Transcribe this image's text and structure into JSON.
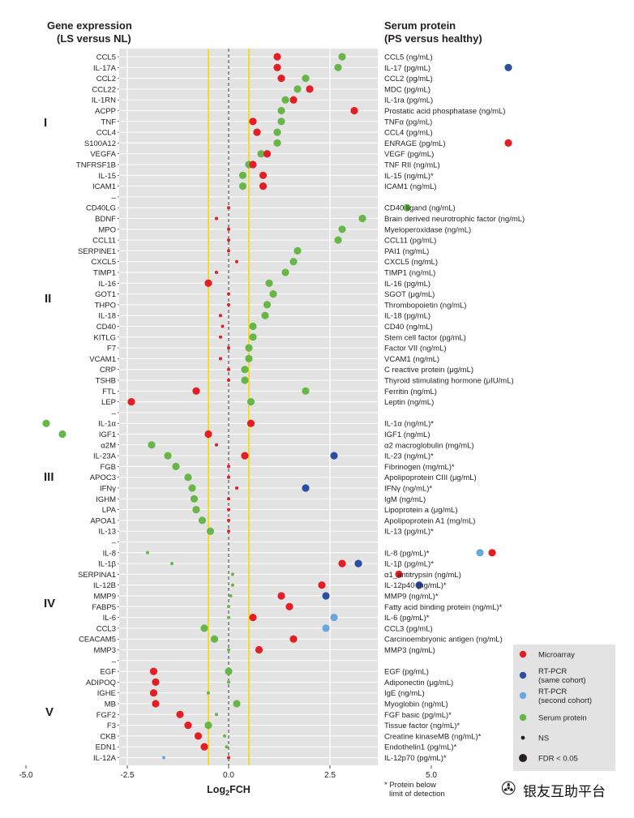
{
  "headers": {
    "left_title": "Gene expression",
    "left_sub": "(LS versus NL)",
    "right_title": "Serum protein",
    "right_sub": "(PS versus healthy)"
  },
  "sections": [
    "I",
    "II",
    "III",
    "IV",
    "V"
  ],
  "footnote": [
    "* Protein below",
    "limit of detection"
  ],
  "watermark": {
    "icon": "wechat-icon",
    "text": "银友互助平台"
  },
  "legend": {
    "items": [
      {
        "label": "Microarray",
        "color": "#e31e24",
        "kind": "dot"
      },
      {
        "label": "RT-PCR (same cohort)",
        "lines": [
          "RT-PCR",
          "(same cohort)"
        ],
        "color": "#2b4ea2",
        "kind": "dot"
      },
      {
        "label": "RT-PCR (second cohort)",
        "lines": [
          "RT-PCR",
          "(second cohort)"
        ],
        "color": "#6aa7dd",
        "kind": "dot"
      },
      {
        "label": "Serum protein",
        "color": "#67b648",
        "kind": "dot"
      },
      {
        "label": "NS",
        "color": "#231f20",
        "kind": "small"
      },
      {
        "label": "FDR < 0.05",
        "color": "#231f20",
        "kind": "large"
      }
    ]
  },
  "colors": {
    "microarray": "#e31e24",
    "rtpcr_same": "#2b4ea2",
    "rtpcr_second": "#6aa7dd",
    "serum": "#67b648",
    "panel_bg": "#e3e3e3",
    "grid": "#ffffff",
    "threshold": "#f5d800",
    "zero_line": "#555555"
  },
  "chart_data": {
    "type": "scatter",
    "xlabel": "Log2FCH",
    "xlim": [
      -5,
      7.2
    ],
    "x_ticks": [
      "-5.0",
      "-2.5",
      "0.0",
      "2.5",
      "5.0"
    ],
    "x_tick_values": [
      -5,
      -2.5,
      0,
      2.5,
      5
    ],
    "threshold_lines": [
      -0.5,
      0.5
    ],
    "series_names": {
      "m": "Microarray",
      "r": "RT-PCR (same cohort)",
      "s": "RT-PCR (second cohort)",
      "p": "Serum protein"
    },
    "rows": [
      {
        "gene": "CCL5",
        "protein": "CCL5 (ng/mL)",
        "points": [
          [
            "m",
            1.2,
            1
          ],
          [
            "p",
            2.8,
            1
          ]
        ]
      },
      {
        "gene": "IL-17A",
        "protein": "IL-17 (pg/mL)",
        "points": [
          [
            "m",
            1.2,
            1
          ],
          [
            "p",
            2.7,
            1
          ],
          [
            "r",
            6.9,
            1
          ]
        ]
      },
      {
        "gene": "CCL2",
        "protein": "CCL2 (pg/mL)",
        "points": [
          [
            "m",
            1.3,
            1
          ],
          [
            "p",
            1.9,
            1
          ]
        ]
      },
      {
        "gene": "CCL22",
        "protein": "MDC (pg/mL)",
        "points": [
          [
            "p",
            1.7,
            1
          ],
          [
            "m",
            2.0,
            1
          ]
        ]
      },
      {
        "gene": "IL-1RN",
        "protein": "IL-1ra (pg/mL)",
        "points": [
          [
            "p",
            1.4,
            1
          ],
          [
            "m",
            1.6,
            1
          ]
        ]
      },
      {
        "gene": "ACPP",
        "protein": "Prostatic acid phosphatase (ng/mL)",
        "points": [
          [
            "p",
            1.3,
            1
          ],
          [
            "m",
            3.1,
            1
          ]
        ]
      },
      {
        "gene": "TNF",
        "protein": "TNFα (pg/mL)",
        "points": [
          [
            "m",
            0.6,
            1
          ],
          [
            "p",
            1.3,
            1
          ]
        ]
      },
      {
        "gene": "CCL4",
        "protein": "CCL4 (pg/mL)",
        "points": [
          [
            "m",
            0.7,
            1
          ],
          [
            "p",
            1.2,
            1
          ]
        ]
      },
      {
        "gene": "S100A12",
        "protein": "ENRAGE (pg/mL)",
        "points": [
          [
            "p",
            1.2,
            1
          ],
          [
            "m",
            6.9,
            1
          ]
        ]
      },
      {
        "gene": "VEGFA",
        "protein": "VEGF (pg/mL)",
        "points": [
          [
            "p",
            0.8,
            1
          ],
          [
            "m",
            0.95,
            1
          ]
        ]
      },
      {
        "gene": "TNFRSF1B",
        "protein": "TNF RII (ng/mL)",
        "points": [
          [
            "p",
            0.5,
            1
          ],
          [
            "m",
            0.6,
            1
          ]
        ]
      },
      {
        "gene": "IL-15",
        "protein": "IL-15 (ng/mL)*",
        "points": [
          [
            "p",
            0.35,
            1
          ],
          [
            "m",
            0.85,
            1
          ]
        ]
      },
      {
        "gene": "ICAM1",
        "protein": "ICAM1 (ng/mL)",
        "points": [
          [
            "p",
            0.35,
            1
          ],
          [
            "m",
            0.85,
            1
          ]
        ]
      },
      {
        "gene": "",
        "protein": "",
        "points": []
      },
      {
        "gene": "CD40LG",
        "protein": "CD40 ligand (ng/mL)",
        "points": [
          [
            "m",
            0.0,
            0
          ],
          [
            "p",
            4.4,
            1
          ]
        ]
      },
      {
        "gene": "BDNF",
        "protein": "Brain derived neurotrophic factor (ng/mL)",
        "points": [
          [
            "m",
            -0.3,
            0
          ],
          [
            "p",
            3.3,
            1
          ]
        ]
      },
      {
        "gene": "MPO",
        "protein": "Myeloperoxidase (ng/mL)",
        "points": [
          [
            "m",
            0.0,
            0
          ],
          [
            "p",
            2.8,
            1
          ]
        ]
      },
      {
        "gene": "CCL11",
        "protein": "CCL11 (pg/mL)",
        "points": [
          [
            "m",
            0.0,
            0
          ],
          [
            "p",
            2.7,
            1
          ]
        ]
      },
      {
        "gene": "SERPINE1",
        "protein": "PAI1 (ng/mL)",
        "points": [
          [
            "m",
            0.0,
            0
          ],
          [
            "p",
            1.7,
            1
          ]
        ]
      },
      {
        "gene": "CXCL5",
        "protein": "CXCL5 (ng/mL)",
        "points": [
          [
            "m",
            0.2,
            0
          ],
          [
            "p",
            1.6,
            1
          ]
        ]
      },
      {
        "gene": "TIMP1",
        "protein": "TIMP1 (ng/mL)",
        "points": [
          [
            "m",
            -0.3,
            0
          ],
          [
            "p",
            1.4,
            1
          ]
        ]
      },
      {
        "gene": "IL-16",
        "protein": "IL-16 (pg/mL)",
        "points": [
          [
            "m",
            -0.5,
            1
          ],
          [
            "p",
            1.0,
            1
          ]
        ]
      },
      {
        "gene": "GOT1",
        "protein": "SGOT (μg/mL)",
        "points": [
          [
            "m",
            0.0,
            0
          ],
          [
            "p",
            1.1,
            1
          ]
        ]
      },
      {
        "gene": "THPO",
        "protein": "Thrombopoietin (ng/mL)",
        "points": [
          [
            "m",
            0.0,
            0
          ],
          [
            "p",
            0.95,
            1
          ]
        ]
      },
      {
        "gene": "IL-18",
        "protein": "IL-18 (pg/mL)",
        "points": [
          [
            "m",
            -0.2,
            0
          ],
          [
            "p",
            0.9,
            1
          ]
        ]
      },
      {
        "gene": "CD40",
        "protein": "CD40 (ng/mL)",
        "points": [
          [
            "m",
            -0.15,
            0
          ],
          [
            "p",
            0.6,
            1
          ]
        ]
      },
      {
        "gene": "KITLG",
        "protein": "Stem cell factor (pg/mL)",
        "points": [
          [
            "m",
            -0.2,
            0
          ],
          [
            "p",
            0.6,
            1
          ]
        ]
      },
      {
        "gene": "F7",
        "protein": "Factor VII (ng/mL)",
        "points": [
          [
            "m",
            0.0,
            0
          ],
          [
            "p",
            0.5,
            1
          ]
        ]
      },
      {
        "gene": "VCAM1",
        "protein": "VCAM1 (ng/mL)",
        "points": [
          [
            "m",
            -0.2,
            0
          ],
          [
            "p",
            0.5,
            1
          ]
        ]
      },
      {
        "gene": "CRP",
        "protein": "C reactive protein (μg/mL)",
        "points": [
          [
            "m",
            0.0,
            0
          ],
          [
            "p",
            0.4,
            1
          ]
        ]
      },
      {
        "gene": "TSHB",
        "protein": "Thyroid stimulating hormone (μIU/mL)",
        "points": [
          [
            "m",
            0.0,
            0
          ],
          [
            "p",
            0.4,
            1
          ]
        ]
      },
      {
        "gene": "FTL",
        "protein": "Ferritin (ng/mL)",
        "points": [
          [
            "m",
            -0.8,
            1
          ],
          [
            "p",
            1.9,
            1
          ]
        ]
      },
      {
        "gene": "LEP",
        "protein": "Leptin (ng/mL)",
        "points": [
          [
            "m",
            -2.4,
            1
          ],
          [
            "p",
            0.55,
            1
          ]
        ]
      },
      {
        "gene": "",
        "protein": "",
        "points": []
      },
      {
        "gene": "IL-1α",
        "protein": "IL-1α (ng/mL)*",
        "points": [
          [
            "p",
            -4.5,
            1
          ],
          [
            "m",
            0.55,
            1
          ]
        ]
      },
      {
        "gene": "IGF1",
        "protein": "IGF1 (ng/mL)",
        "points": [
          [
            "p",
            -4.1,
            1
          ],
          [
            "m",
            -0.5,
            1
          ]
        ]
      },
      {
        "gene": "α2M",
        "protein": "α2 macroglobulin (mg/mL)",
        "points": [
          [
            "p",
            -1.9,
            1
          ],
          [
            "m",
            -0.3,
            0
          ]
        ]
      },
      {
        "gene": "IL-23A",
        "protein": "IL-23 (ng/mL)*",
        "points": [
          [
            "p",
            -1.5,
            1
          ],
          [
            "m",
            0.4,
            1
          ],
          [
            "r",
            2.6,
            1
          ]
        ]
      },
      {
        "gene": "FGB",
        "protein": "Fibrinogen (mg/mL)*",
        "points": [
          [
            "p",
            -1.3,
            1
          ],
          [
            "m",
            0.0,
            0
          ]
        ]
      },
      {
        "gene": "APOC3",
        "protein": "Apolipoprotein CIII (μg/mL)",
        "points": [
          [
            "p",
            -1.0,
            1
          ],
          [
            "m",
            0.0,
            0
          ]
        ]
      },
      {
        "gene": "IFNγ",
        "protein": "IFNγ (ng/mL)*",
        "points": [
          [
            "p",
            -0.9,
            1
          ],
          [
            "m",
            0.2,
            0
          ],
          [
            "r",
            1.9,
            1
          ]
        ]
      },
      {
        "gene": "IGHM",
        "protein": "IgM (ng/mL)",
        "points": [
          [
            "p",
            -0.85,
            1
          ],
          [
            "m",
            0.0,
            0
          ]
        ]
      },
      {
        "gene": "LPA",
        "protein": "Lipoprotein a (μg/mL)",
        "points": [
          [
            "p",
            -0.8,
            1
          ],
          [
            "m",
            0.0,
            0
          ]
        ]
      },
      {
        "gene": "APOA1",
        "protein": "Apolipoprotein A1 (mg/mL)",
        "points": [
          [
            "p",
            -0.65,
            1
          ],
          [
            "m",
            0.0,
            0
          ]
        ]
      },
      {
        "gene": "IL-13",
        "protein": "IL-13 (pg/mL)*",
        "points": [
          [
            "p",
            -0.45,
            1
          ],
          [
            "m",
            0.0,
            0
          ]
        ]
      },
      {
        "gene": "",
        "protein": "",
        "points": []
      },
      {
        "gene": "IL-8",
        "protein": "IL-8 (pg/mL)*",
        "points": [
          [
            "p",
            -2.0,
            0
          ],
          [
            "s",
            6.2,
            1
          ],
          [
            "m",
            6.5,
            1
          ]
        ]
      },
      {
        "gene": "IL-1β",
        "protein": "IL-1β (pg/mL)*",
        "points": [
          [
            "p",
            -1.4,
            0
          ],
          [
            "m",
            2.8,
            1
          ],
          [
            "r",
            3.2,
            1
          ]
        ]
      },
      {
        "gene": "SERPINA1",
        "protein": "α1_antitrypsin (ng/mL)",
        "points": [
          [
            "p",
            0.1,
            0
          ],
          [
            "m",
            4.2,
            1
          ]
        ]
      },
      {
        "gene": "IL-12B",
        "protein": "IL-12p40 (ng/mL)*",
        "points": [
          [
            "p",
            0.1,
            0
          ],
          [
            "m",
            2.3,
            1
          ],
          [
            "r",
            4.7,
            1
          ]
        ]
      },
      {
        "gene": "MMP9",
        "protein": "MMP9 (ng/mL)*",
        "points": [
          [
            "p",
            0.05,
            0
          ],
          [
            "m",
            1.3,
            1
          ],
          [
            "r",
            2.4,
            1
          ]
        ]
      },
      {
        "gene": "FABP5",
        "protein": "Fatty acid binding protein (ng/mL)*",
        "points": [
          [
            "p",
            0.0,
            0
          ],
          [
            "m",
            1.5,
            1
          ]
        ]
      },
      {
        "gene": "IL-6",
        "protein": "IL-6 (pg/mL)*",
        "points": [
          [
            "p",
            0.0,
            0
          ],
          [
            "m",
            0.6,
            1
          ],
          [
            "s",
            2.6,
            1
          ]
        ]
      },
      {
        "gene": "CCL3",
        "protein": "CCL3 (pg/mL)",
        "points": [
          [
            "p",
            -0.6,
            1
          ],
          [
            "s",
            2.4,
            1
          ]
        ]
      },
      {
        "gene": "CEACAM5",
        "protein": "Carcinoembryonic antigen (ng/mL)",
        "points": [
          [
            "p",
            -0.35,
            1
          ],
          [
            "m",
            1.6,
            1
          ]
        ]
      },
      {
        "gene": "MMP3",
        "protein": "MMP3 (ng/mL)",
        "points": [
          [
            "p",
            0.0,
            0
          ],
          [
            "m",
            0.75,
            1
          ]
        ]
      },
      {
        "gene": "",
        "protein": "",
        "points": []
      },
      {
        "gene": "EGF",
        "protein": "EGF (pg/mL)",
        "points": [
          [
            "m",
            -1.85,
            1
          ],
          [
            "p",
            0.0,
            1
          ]
        ]
      },
      {
        "gene": "ADIPOQ",
        "protein": "Adiponectin (μg/mL)",
        "points": [
          [
            "m",
            -1.8,
            1
          ],
          [
            "p",
            0.0,
            0
          ]
        ]
      },
      {
        "gene": "IGHE",
        "protein": "IgE (ng/mL)",
        "points": [
          [
            "m",
            -1.85,
            1
          ],
          [
            "p",
            -0.5,
            0
          ]
        ]
      },
      {
        "gene": "MB",
        "protein": "Myoglobin (ng/mL)",
        "points": [
          [
            "m",
            -1.8,
            1
          ],
          [
            "p",
            0.2,
            1
          ]
        ]
      },
      {
        "gene": "FGF2",
        "protein": "FGF basic (pg/mL)*",
        "points": [
          [
            "m",
            -1.2,
            1
          ],
          [
            "p",
            -0.3,
            0
          ]
        ]
      },
      {
        "gene": "F3",
        "protein": "Tissue factor (ng/mL)*",
        "points": [
          [
            "m",
            -1.0,
            1
          ],
          [
            "p",
            -0.5,
            1
          ]
        ]
      },
      {
        "gene": "CKB",
        "protein": "Creatine kinaseMB (ng/mL)*",
        "points": [
          [
            "m",
            -0.75,
            1
          ],
          [
            "p",
            -0.1,
            0
          ]
        ]
      },
      {
        "gene": "EDN1",
        "protein": "Endothelin1 (pg/mL)*",
        "points": [
          [
            "m",
            -0.6,
            1
          ],
          [
            "p",
            -0.05,
            0
          ]
        ]
      },
      {
        "gene": "IL-12A",
        "protein": "IL-12p70 (pg/mL)*",
        "points": [
          [
            "s",
            -1.6,
            0
          ],
          [
            "m",
            0.0,
            0
          ]
        ]
      }
    ]
  }
}
